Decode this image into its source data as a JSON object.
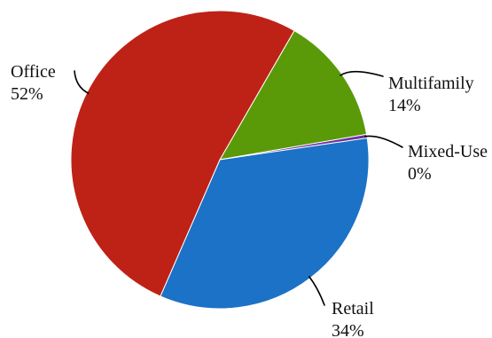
{
  "chart_data": {
    "type": "pie",
    "categories": [
      "Multifamily",
      "Mixed-Use",
      "Retail",
      "Office"
    ],
    "values": [
      14,
      0.4,
      34,
      52
    ],
    "value_labels": [
      "14%",
      "0%",
      "34%",
      "52%"
    ],
    "colors": [
      "#5a9a08",
      "#7030a0",
      "#1b72c6",
      "#be2217"
    ],
    "title": "",
    "legend": "none",
    "start_angle_deg": 30,
    "direction": "clockwise"
  }
}
